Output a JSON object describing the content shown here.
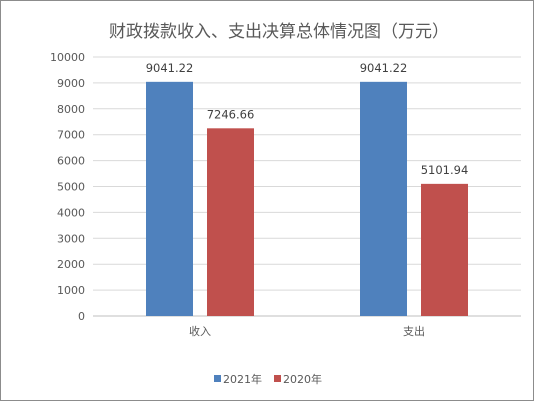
{
  "chart_data": {
    "type": "bar",
    "title": "财政拨款收入、支出决算总体情况图（万元）",
    "categories": [
      "收入",
      "支出"
    ],
    "series": [
      {
        "name": "2021年",
        "values": [
          9041.22,
          9041.22
        ],
        "labels": [
          "9041.22",
          "9041.22"
        ],
        "color": "#4f81bd"
      },
      {
        "name": "2020年",
        "values": [
          7246.66,
          5101.94
        ],
        "labels": [
          "7246.66",
          "5101.94"
        ],
        "color": "#c0504d"
      }
    ],
    "ylim": [
      0,
      10000
    ],
    "yticks": [
      "0",
      "1000",
      "2000",
      "3000",
      "4000",
      "5000",
      "6000",
      "7000",
      "8000",
      "9000",
      "10000"
    ],
    "grid": true,
    "legend_position": "bottom",
    "xlabel": "",
    "ylabel": ""
  }
}
